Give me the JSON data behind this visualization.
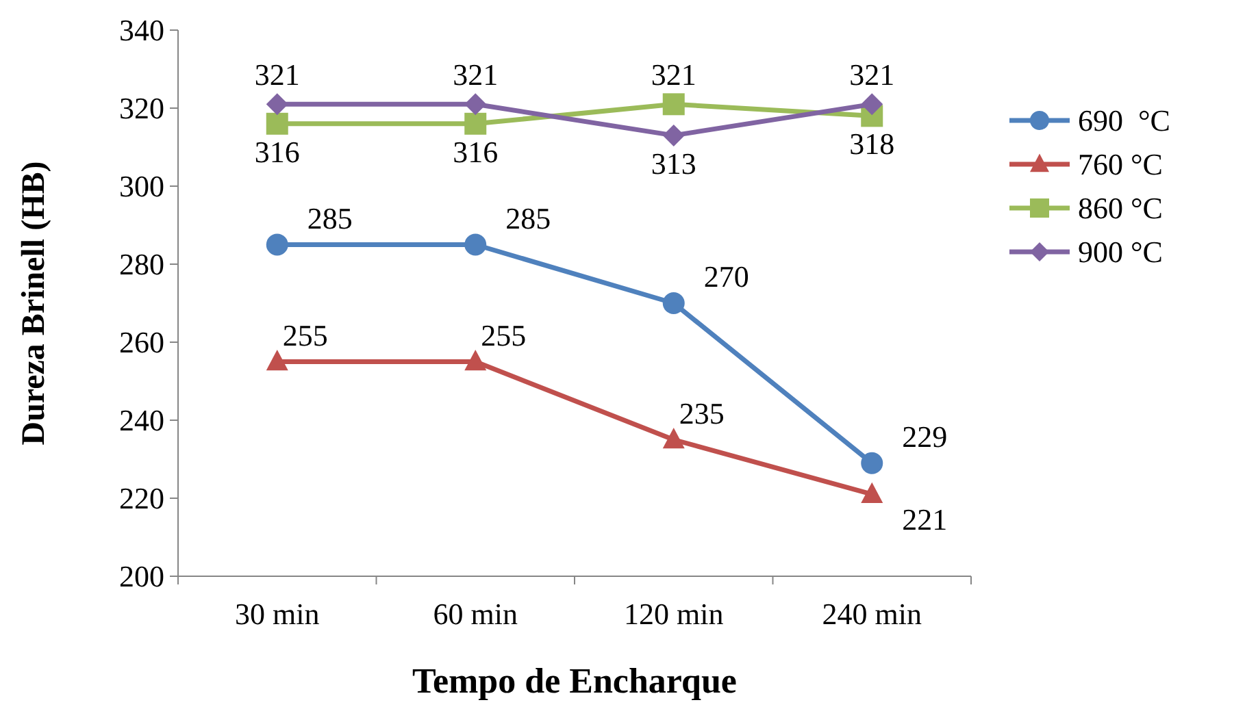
{
  "chart_data": {
    "type": "line",
    "xlabel": "Tempo de Encharque",
    "ylabel": "Dureza Brinell (HB)",
    "categories": [
      "30 min",
      "60 min",
      "120 min",
      "240 min"
    ],
    "ylim": [
      200,
      340
    ],
    "yticks": [
      200,
      220,
      240,
      260,
      280,
      300,
      320,
      340
    ],
    "grid": false,
    "legend": "right",
    "data_labels": true,
    "series": [
      {
        "name": "690  °C",
        "color": "#4f81bd",
        "marker": "circle",
        "values": [
          285,
          285,
          270,
          229
        ]
      },
      {
        "name": "760 °C",
        "color": "#c0504d",
        "marker": "triangle",
        "values": [
          255,
          255,
          235,
          221
        ]
      },
      {
        "name": "860 °C",
        "color": "#9bbb59",
        "marker": "square",
        "values": [
          316,
          316,
          321,
          318
        ]
      },
      {
        "name": "900 °C",
        "color": "#8064a2",
        "marker": "diamond",
        "values": [
          321,
          321,
          313,
          321
        ]
      }
    ]
  }
}
